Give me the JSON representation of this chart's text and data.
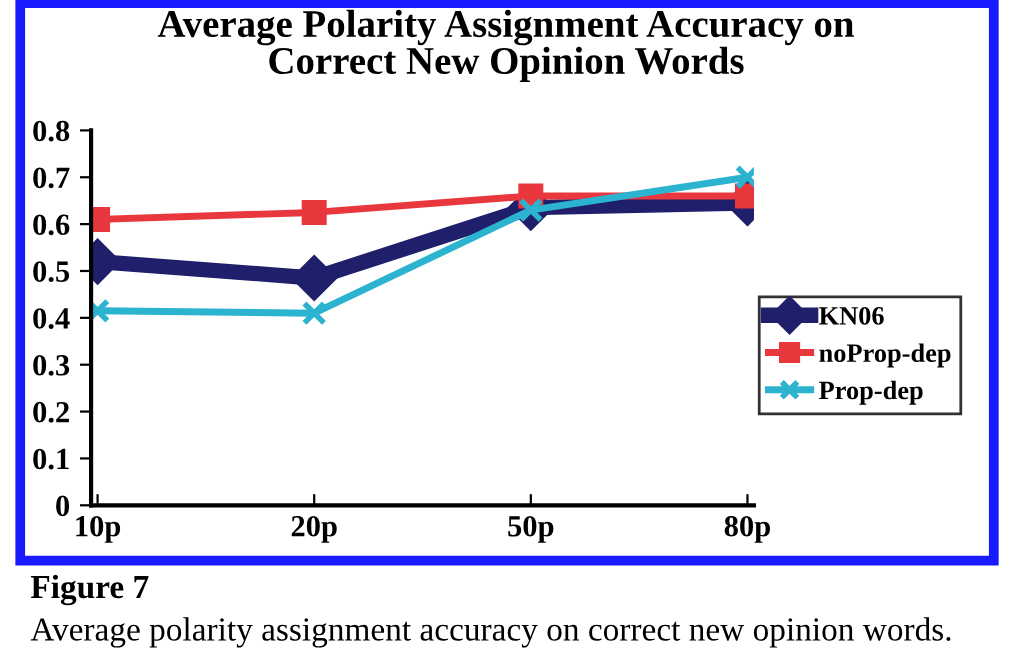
{
  "chart_data": {
    "type": "line",
    "title": "Average Polarity Assignment Accuracy on\nCorrect New Opinion Words",
    "categories": [
      "10p",
      "20p",
      "50p",
      "80p"
    ],
    "series": [
      {
        "name": "KN06",
        "color": "#1f1f6b",
        "values": [
          0.52,
          0.485,
          0.635,
          0.645
        ],
        "marker": "diamond"
      },
      {
        "name": "noProp-dep",
        "color": "#e8383d",
        "values": [
          0.61,
          0.625,
          0.66,
          0.66
        ],
        "marker": "square"
      },
      {
        "name": "Prop-dep",
        "color": "#2bb3cf",
        "values": [
          0.415,
          0.41,
          0.63,
          0.7
        ],
        "marker": "cross"
      }
    ],
    "ylim": [
      0,
      0.8
    ],
    "yticks": [
      {
        "value": 0,
        "label": "0"
      },
      0.1,
      0.2,
      0.3,
      0.4,
      0.5,
      0.6,
      0.7,
      0.8
    ],
    "grid": false,
    "legend": "right",
    "line_style": "solid",
    "annotations": [
      "Figure 7",
      "Average polarity assignment accuracy on correct new opinion words."
    ]
  }
}
